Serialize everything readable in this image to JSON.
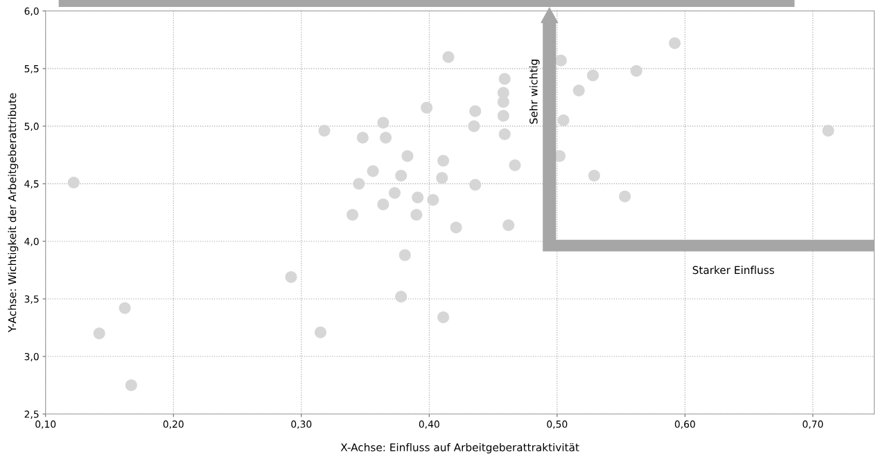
{
  "chart_data": {
    "type": "scatter",
    "xlabel": "X-Achse: Einfluss auf Arbeitgeberattraktivität",
    "ylabel": "Y-Achse: Wichtigkeit der Arbeitgeberattribute",
    "annotations": [
      "Sehr wichtig",
      "Starker Einfluss"
    ],
    "marker": "circle",
    "grid": true,
    "legend": false,
    "xlim": [
      0.1,
      0.748
    ],
    "ylim": [
      2.5,
      6.0
    ],
    "xticks": [
      {
        "value": 0.1,
        "label": "0,10"
      },
      {
        "value": 0.2,
        "label": "0,20"
      },
      {
        "value": 0.3,
        "label": "0,30"
      },
      {
        "value": 0.4,
        "label": "0,40"
      },
      {
        "value": 0.5,
        "label": "0,50"
      },
      {
        "value": 0.6,
        "label": "0,60"
      },
      {
        "value": 0.7,
        "label": "0,70"
      }
    ],
    "yticks": [
      {
        "value": 2.5,
        "label": "2,5"
      },
      {
        "value": 3.0,
        "label": "3,0"
      },
      {
        "value": 3.5,
        "label": "3,5"
      },
      {
        "value": 4.0,
        "label": "4,0"
      },
      {
        "value": 4.5,
        "label": "4,5"
      },
      {
        "value": 5.0,
        "label": "5,0"
      },
      {
        "value": 5.5,
        "label": "5,5"
      },
      {
        "value": 6.0,
        "label": "6,0"
      }
    ],
    "series": [
      {
        "color": "#d6d6d6",
        "x": [
          0.122,
          0.318,
          0.292,
          0.162,
          0.142,
          0.315,
          0.167,
          0.415,
          0.459,
          0.458,
          0.458,
          0.398,
          0.436,
          0.458,
          0.364,
          0.435,
          0.459,
          0.348,
          0.366,
          0.383,
          0.411,
          0.467,
          0.356,
          0.378,
          0.41,
          0.345,
          0.436,
          0.373,
          0.391,
          0.403,
          0.364,
          0.34,
          0.39,
          0.421,
          0.462,
          0.381,
          0.378,
          0.411,
          0.503,
          0.592,
          0.562,
          0.528,
          0.517,
          0.505,
          0.712,
          0.502,
          0.529,
          0.553
        ],
        "values": [
          4.51,
          4.96,
          3.69,
          3.42,
          3.2,
          3.21,
          2.75,
          5.6,
          5.41,
          5.29,
          5.21,
          5.16,
          5.13,
          5.09,
          5.03,
          5.0,
          4.93,
          4.9,
          4.9,
          4.74,
          4.7,
          4.66,
          4.61,
          4.57,
          4.55,
          4.5,
          4.49,
          4.42,
          4.38,
          4.36,
          4.32,
          4.23,
          4.23,
          4.12,
          4.14,
          3.88,
          3.52,
          3.34,
          5.57,
          5.72,
          5.48,
          5.44,
          5.31,
          5.05,
          4.96,
          4.74,
          4.57,
          4.39
        ]
      }
    ]
  }
}
